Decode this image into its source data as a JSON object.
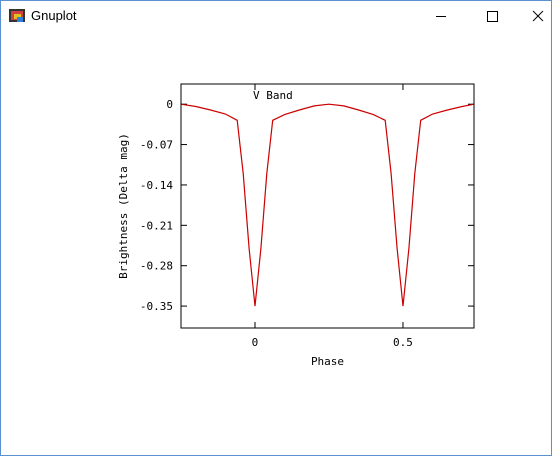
{
  "window": {
    "title": "Gnuplot"
  },
  "chart_data": {
    "type": "line",
    "xlabel": "Phase",
    "ylabel": "Brightness (Delta mag)",
    "series": [
      {
        "name": "V Band",
        "color": "#cc0000",
        "x": [
          -0.25,
          -0.2,
          -0.15,
          -0.1,
          -0.06,
          -0.04,
          -0.02,
          0,
          0.02,
          0.04,
          0.06,
          0.1,
          0.15,
          0.2,
          0.25,
          0.3,
          0.35,
          0.4,
          0.44,
          0.46,
          0.48,
          0.5,
          0.52,
          0.54,
          0.56,
          0.6,
          0.65,
          0.7,
          0.74
        ],
        "values": [
          0,
          -0.004,
          -0.01,
          -0.017,
          -0.028,
          -0.12,
          -0.25,
          -0.35,
          -0.25,
          -0.12,
          -0.028,
          -0.018,
          -0.01,
          -0.003,
          0,
          -0.003,
          -0.01,
          -0.018,
          -0.028,
          -0.12,
          -0.25,
          -0.35,
          -0.25,
          -0.12,
          -0.028,
          -0.017,
          -0.01,
          -0.004,
          0
        ]
      }
    ],
    "xlim": [
      -0.25,
      0.74
    ],
    "xticks": [
      0,
      0.5
    ],
    "ylim": [
      -0.388,
      0.035
    ],
    "yticks": [
      0,
      -0.07,
      -0.14,
      -0.21,
      -0.28,
      -0.35
    ]
  }
}
